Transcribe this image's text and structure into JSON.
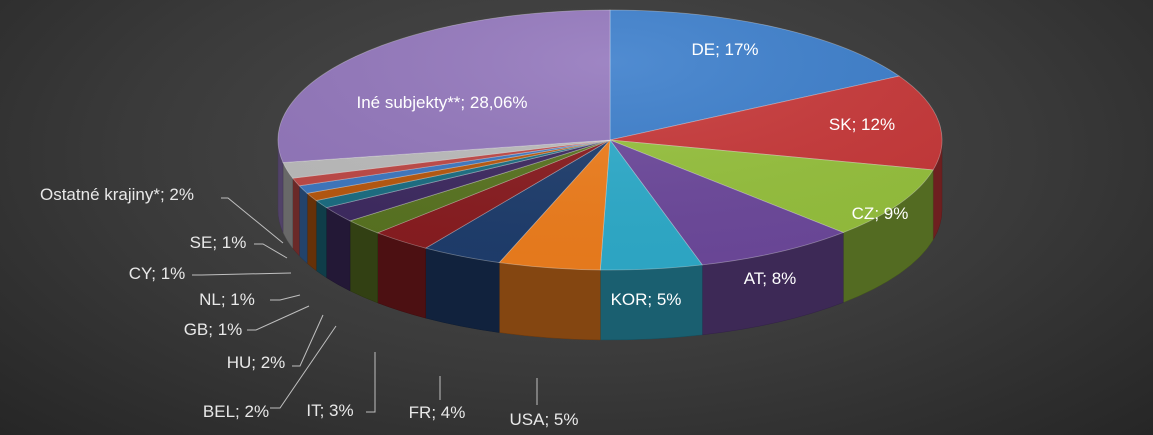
{
  "chart_data": {
    "type": "pie",
    "style": "3d",
    "title": "",
    "slices": [
      {
        "label": "DE; 17%",
        "category": "DE",
        "value": 17,
        "color": "#3d7fcc",
        "placement": "inside"
      },
      {
        "label": "SK; 12%",
        "category": "SK",
        "value": 12,
        "color": "#c8393a",
        "placement": "inside"
      },
      {
        "label": "CZ; 9%",
        "category": "CZ",
        "value": 9,
        "color": "#97c23e",
        "placement": "inside"
      },
      {
        "label": "AT; 8%",
        "category": "AT",
        "value": 8,
        "color": "#6e4a9d",
        "placement": "inside"
      },
      {
        "label": "KOR; 5%",
        "category": "KOR",
        "value": 5,
        "color": "#2fadcc",
        "placement": "inside"
      },
      {
        "label": "USA; 5%",
        "category": "USA",
        "value": 5,
        "color": "#f07f1e",
        "placement": "outside"
      },
      {
        "label": "FR; 4%",
        "category": "FR",
        "value": 4,
        "color": "#1f3e6e",
        "placement": "outside"
      },
      {
        "label": "IT; 3%",
        "category": "IT",
        "value": 3,
        "color": "#8a1d21",
        "placement": "outside"
      },
      {
        "label": "BEL; 2%",
        "category": "BEL",
        "value": 2,
        "color": "#5a7522",
        "placement": "outside"
      },
      {
        "label": "HU; 2%",
        "category": "HU",
        "value": 2,
        "color": "#3f2b62",
        "placement": "outside"
      },
      {
        "label": "GB; 1%",
        "category": "GB",
        "value": 1,
        "color": "#1c6f84",
        "placement": "outside"
      },
      {
        "label": "NL; 1%",
        "category": "NL",
        "value": 1,
        "color": "#b9590f",
        "placement": "outside"
      },
      {
        "label": "CY; 1%",
        "category": "CY",
        "value": 1,
        "color": "#3f79c2",
        "placement": "outside"
      },
      {
        "label": "SE; 1%",
        "category": "SE",
        "value": 1,
        "color": "#c04a48",
        "placement": "outside"
      },
      {
        "label": "Ostatné krajiny*; 2%",
        "category": "Ostatné krajiny*",
        "value": 2,
        "color": "#bdbdbd",
        "placement": "outside"
      },
      {
        "label": "Iné subjekty**; 28,06%",
        "category": "Iné subjekty**",
        "value": 28.06,
        "color": "#9478bd",
        "placement": "inside"
      }
    ],
    "legend": "none",
    "data_labels": "category; percent"
  }
}
